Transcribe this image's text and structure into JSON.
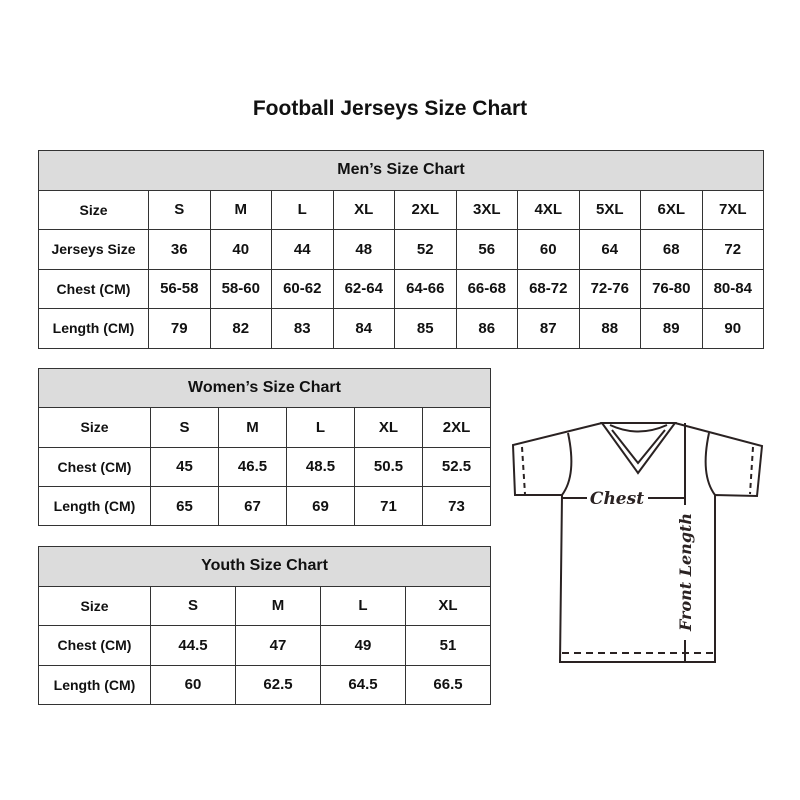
{
  "title": "Football Jerseys Size Chart",
  "men": {
    "heading": "Men’s Size Chart",
    "rows": [
      [
        "Size",
        "S",
        "M",
        "L",
        "XL",
        "2XL",
        "3XL",
        "4XL",
        "5XL",
        "6XL",
        "7XL"
      ],
      [
        "Jerseys Size",
        "36",
        "40",
        "44",
        "48",
        "52",
        "56",
        "60",
        "64",
        "68",
        "72"
      ],
      [
        "Chest (CM)",
        "56-58",
        "58-60",
        "60-62",
        "62-64",
        "64-66",
        "66-68",
        "68-72",
        "72-76",
        "76-80",
        "80-84"
      ],
      [
        "Length (CM)",
        "79",
        "82",
        "83",
        "84",
        "85",
        "86",
        "87",
        "88",
        "89",
        "90"
      ]
    ]
  },
  "women": {
    "heading": "Women’s Size Chart",
    "rows": [
      [
        "Size",
        "S",
        "M",
        "L",
        "XL",
        "2XL"
      ],
      [
        "Chest (CM)",
        "45",
        "46.5",
        "48.5",
        "50.5",
        "52.5"
      ],
      [
        "Length (CM)",
        "65",
        "67",
        "69",
        "71",
        "73"
      ]
    ]
  },
  "youth": {
    "heading": "Youth Size Chart",
    "rows": [
      [
        "Size",
        "S",
        "M",
        "L",
        "XL"
      ],
      [
        "Chest (CM)",
        "44.5",
        "47",
        "49",
        "51"
      ],
      [
        "Length (CM)",
        "60",
        "62.5",
        "64.5",
        "66.5"
      ]
    ]
  },
  "diagram": {
    "chest_label": "Chest",
    "length_label": "Front Length"
  }
}
